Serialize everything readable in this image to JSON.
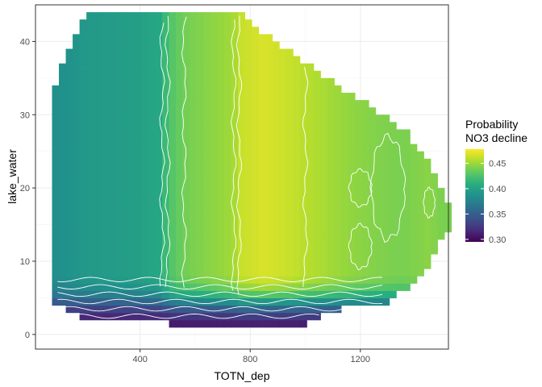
{
  "chart_data": {
    "type": "heatmap",
    "title": "",
    "xlabel": "TOTN_dep",
    "ylabel": "lake_water",
    "xlim": [
      20,
      1520
    ],
    "ylim": [
      -2,
      45
    ],
    "x_ticks": [
      400,
      800,
      1200
    ],
    "y_ticks": [
      0,
      10,
      20,
      30,
      40
    ],
    "grid": true,
    "legend": {
      "title_lines": [
        "Probability",
        "NO3 decline"
      ],
      "position": "right",
      "ticks": [
        0.45,
        0.4,
        0.35,
        0.3
      ],
      "range": [
        0.295,
        0.478
      ],
      "colors": [
        "#440154",
        "#472d7b",
        "#3b528b",
        "#2c728e",
        "#21918c",
        "#28ae80",
        "#5ec962",
        "#addc30",
        "#fde725"
      ]
    },
    "grid_step": {
      "x": 25,
      "y": 1
    },
    "value_by_x": [
      {
        "x": 100,
        "v": 0.385
      },
      {
        "x": 200,
        "v": 0.392
      },
      {
        "x": 300,
        "v": 0.395
      },
      {
        "x": 400,
        "v": 0.398
      },
      {
        "x": 480,
        "v": 0.405
      },
      {
        "x": 500,
        "v": 0.425
      },
      {
        "x": 560,
        "v": 0.438
      },
      {
        "x": 650,
        "v": 0.445
      },
      {
        "x": 740,
        "v": 0.452
      },
      {
        "x": 760,
        "v": 0.462
      },
      {
        "x": 850,
        "v": 0.468
      },
      {
        "x": 950,
        "v": 0.462
      },
      {
        "x": 1050,
        "v": 0.455
      },
      {
        "x": 1150,
        "v": 0.448
      },
      {
        "x": 1250,
        "v": 0.443
      },
      {
        "x": 1350,
        "v": 0.44
      },
      {
        "x": 1450,
        "v": 0.445
      },
      {
        "x": 1500,
        "v": 0.44
      }
    ],
    "value_by_y": [
      {
        "y": 0,
        "v": 0.3
      },
      {
        "y": 2,
        "v": 0.31
      },
      {
        "y": 3,
        "v": 0.325
      },
      {
        "y": 4,
        "v": 0.345
      },
      {
        "y": 5,
        "v": 0.372
      },
      {
        "y": 6,
        "v": 0.39
      },
      {
        "y": 7,
        "v": 0.4
      },
      {
        "y": 8,
        "v": 0.405
      },
      {
        "y": 12,
        "v": 0.405
      },
      {
        "y": 44,
        "v": 0.405
      }
    ],
    "region": {
      "top_edge": [
        {
          "x": 80,
          "y": 32
        },
        {
          "x": 100,
          "y": 35
        },
        {
          "x": 140,
          "y": 39
        },
        {
          "x": 180,
          "y": 42
        },
        {
          "x": 200,
          "y": 43.5
        },
        {
          "x": 780,
          "y": 43.5
        },
        {
          "x": 820,
          "y": 42
        },
        {
          "x": 900,
          "y": 40
        },
        {
          "x": 960,
          "y": 38
        },
        {
          "x": 1000,
          "y": 37
        },
        {
          "x": 1040,
          "y": 36
        },
        {
          "x": 1080,
          "y": 35
        },
        {
          "x": 1120,
          "y": 34
        },
        {
          "x": 1160,
          "y": 33
        },
        {
          "x": 1200,
          "y": 32
        },
        {
          "x": 1240,
          "y": 31
        },
        {
          "x": 1280,
          "y": 30
        },
        {
          "x": 1320,
          "y": 29
        },
        {
          "x": 1360,
          "y": 28
        },
        {
          "x": 1400,
          "y": 26
        },
        {
          "x": 1440,
          "y": 24
        },
        {
          "x": 1480,
          "y": 21
        },
        {
          "x": 1520,
          "y": 18
        }
      ],
      "bottom_edge": [
        {
          "x": 80,
          "y": 4
        },
        {
          "x": 100,
          "y": 4
        },
        {
          "x": 140,
          "y": 3
        },
        {
          "x": 200,
          "y": 2
        },
        {
          "x": 300,
          "y": 2
        },
        {
          "x": 500,
          "y": 1.5
        },
        {
          "x": 740,
          "y": 1
        },
        {
          "x": 760,
          "y": 0.5
        },
        {
          "x": 950,
          "y": 0.5
        },
        {
          "x": 1000,
          "y": 1.5
        },
        {
          "x": 1080,
          "y": 3
        },
        {
          "x": 1200,
          "y": 4
        },
        {
          "x": 1280,
          "y": 4
        },
        {
          "x": 1320,
          "y": 5
        },
        {
          "x": 1360,
          "y": 6
        },
        {
          "x": 1400,
          "y": 7
        },
        {
          "x": 1440,
          "y": 9
        },
        {
          "x": 1480,
          "y": 12
        },
        {
          "x": 1520,
          "y": 14
        }
      ]
    },
    "contours": {
      "vertical_x": [
        480,
        500,
        560,
        740,
        760,
        1000
      ],
      "horizontal_y": [
        2.5,
        3.5,
        4.5,
        5.5,
        6.5,
        7.5
      ],
      "loops": [
        {
          "cx": 1200,
          "cy": 20,
          "rx": 40,
          "ry": 2.5
        },
        {
          "cx": 1200,
          "cy": 12,
          "rx": 40,
          "ry": 3
        },
        {
          "cx": 1450,
          "cy": 18,
          "rx": 20,
          "ry": 2
        },
        {
          "cx": 1300,
          "cy": 20,
          "rx": 60,
          "ry": 7
        }
      ]
    }
  }
}
